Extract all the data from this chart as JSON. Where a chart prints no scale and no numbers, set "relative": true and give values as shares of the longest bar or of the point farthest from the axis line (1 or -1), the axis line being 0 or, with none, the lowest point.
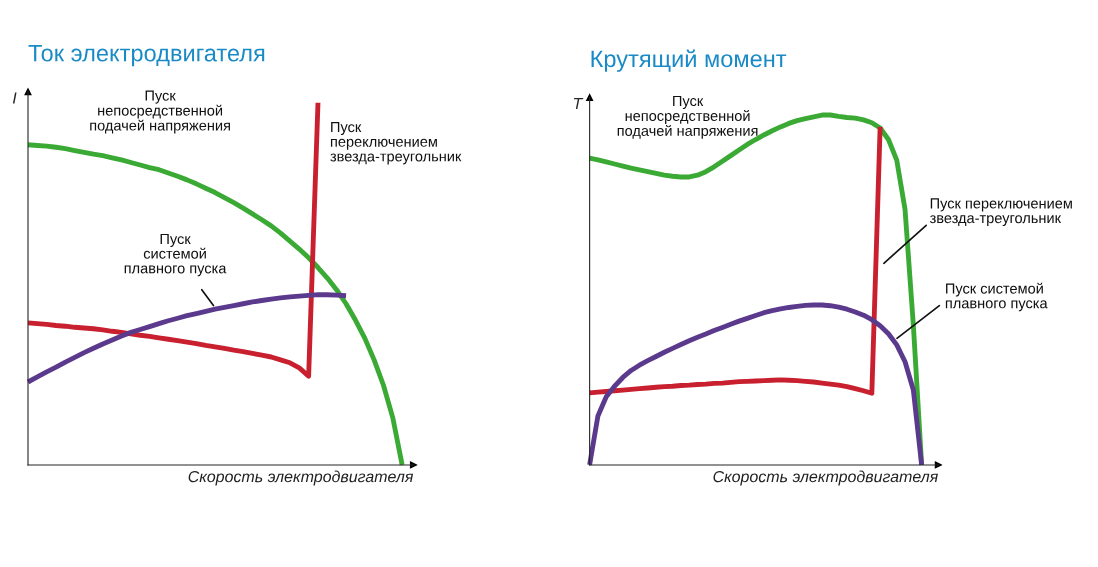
{
  "chart_data": [
    {
      "type": "line",
      "title": "Ток электродвигателя",
      "xlabel": "Скорость электродвигателя",
      "ylabel": "I",
      "relative": true,
      "categories": [
        null,
        null,
        null,
        null,
        null,
        null,
        null,
        null,
        null,
        null,
        null,
        null,
        null,
        null,
        null,
        null,
        null,
        null,
        null,
        null,
        null,
        null,
        null,
        null,
        null,
        null,
        null,
        null,
        null,
        null,
        null,
        null,
        null,
        null,
        null,
        null,
        null,
        null,
        null,
        null,
        null
      ],
      "series": [
        {
          "color": "#3aaa35",
          "values": [
            0.884,
            0.882,
            0.88,
            0.877,
            0.873,
            0.868,
            0.863,
            0.858,
            0.854,
            0.848,
            0.842,
            0.835,
            0.828,
            0.821,
            0.815,
            0.806,
            0.797,
            0.787,
            0.776,
            0.764,
            0.752,
            0.738,
            0.724,
            0.709,
            0.693,
            0.677,
            0.66,
            0.64,
            0.618,
            0.596,
            0.572,
            0.545,
            0.516,
            0.483,
            0.445,
            0.4,
            0.35,
            0.29,
            0.22,
            0.13,
            0
          ]
        },
        {
          "color": "#c8202f",
          "values": [
            0.392,
            0.39,
            0.388,
            0.385,
            0.383,
            0.38,
            0.378,
            0.376,
            0.373,
            0.369,
            0.366,
            0.362,
            0.358,
            0.355,
            0.351,
            0.347,
            0.343,
            0.339,
            0.335,
            0.33,
            0.326,
            0.322,
            0.317,
            0.313,
            0.308,
            0.303,
            0.298,
            0.29,
            0.282,
            0.268,
            0.245,
            1.0,
            null,
            null,
            null,
            null,
            null,
            null,
            null,
            null,
            null
          ]
        },
        {
          "color": "#5b3a8e",
          "values": [
            0.229,
            0.243,
            0.257,
            0.27,
            0.284,
            0.297,
            0.31,
            0.322,
            0.334,
            0.345,
            0.356,
            0.366,
            0.374,
            0.382,
            0.39,
            0.398,
            0.405,
            0.412,
            0.418,
            0.424,
            0.43,
            0.435,
            0.44,
            0.445,
            0.45,
            0.454,
            0.458,
            0.461,
            0.464,
            0.466,
            0.468,
            0.47,
            0.47,
            0.469,
            0.467,
            null,
            null,
            null,
            null,
            null,
            null
          ]
        }
      ],
      "annotations": [
        "Пуск\nнепосредственной\nподачей напряжения",
        "Пуск\nпереключением\nзвезда-треугольник",
        "Пуск\nсистемой\nплавного пуска"
      ]
    },
    {
      "type": "line",
      "title": "Крутящий момент",
      "xlabel": "Скорость электродвигателя",
      "ylabel": "T",
      "relative": true,
      "categories": [
        null,
        null,
        null,
        null,
        null,
        null,
        null,
        null,
        null,
        null,
        null,
        null,
        null,
        null,
        null,
        null,
        null,
        null,
        null,
        null,
        null,
        null,
        null,
        null,
        null,
        null,
        null,
        null,
        null,
        null,
        null,
        null,
        null,
        null,
        null,
        null,
        null,
        null,
        null,
        null,
        null
      ],
      "series": [
        {
          "color": "#3aaa35",
          "values": [
            0.877,
            0.872,
            0.866,
            0.86,
            0.854,
            0.848,
            0.843,
            0.838,
            0.833,
            0.828,
            0.825,
            0.823,
            0.823,
            0.828,
            0.838,
            0.852,
            0.868,
            0.884,
            0.9,
            0.916,
            0.93,
            0.943,
            0.955,
            0.966,
            0.976,
            0.984,
            0.99,
            0.995,
            1.0,
            1.0,
            0.996,
            0.993,
            0.991,
            0.986,
            0.978,
            0.963,
            0.93,
            0.871,
            0.73,
            0.4,
            0
          ]
        },
        {
          "color": "#c8202f",
          "values": [
            0.206,
            0.208,
            0.21,
            0.212,
            0.214,
            0.216,
            0.218,
            0.22,
            0.222,
            0.224,
            0.225,
            0.227,
            0.228,
            0.23,
            0.231,
            0.233,
            0.234,
            0.236,
            0.238,
            0.239,
            0.24,
            0.241,
            0.242,
            0.243,
            0.242,
            0.241,
            0.239,
            0.237,
            0.234,
            0.231,
            0.228,
            0.224,
            0.218,
            0.212,
            0.205,
            0.966,
            null,
            null,
            null,
            null,
            null
          ]
        },
        {
          "color": "#5b3a8e",
          "values": [
            0,
            0.14,
            0.195,
            0.225,
            0.25,
            0.27,
            0.285,
            0.298,
            0.31,
            0.322,
            0.333,
            0.344,
            0.355,
            0.365,
            0.374,
            0.384,
            0.393,
            0.402,
            0.411,
            0.419,
            0.427,
            0.435,
            0.441,
            0.446,
            0.45,
            0.453,
            0.456,
            0.457,
            0.457,
            0.455,
            0.451,
            0.445,
            0.437,
            0.428,
            0.415,
            0.398,
            0.375,
            0.343,
            0.295,
            0.214,
            0
          ]
        }
      ],
      "annotations": [
        "Пуск\nнепосредственной\nподачей напряжения",
        "Пуск переключением\nзвезда-треугольник",
        "Пуск системой\nплавного пуска"
      ]
    }
  ]
}
